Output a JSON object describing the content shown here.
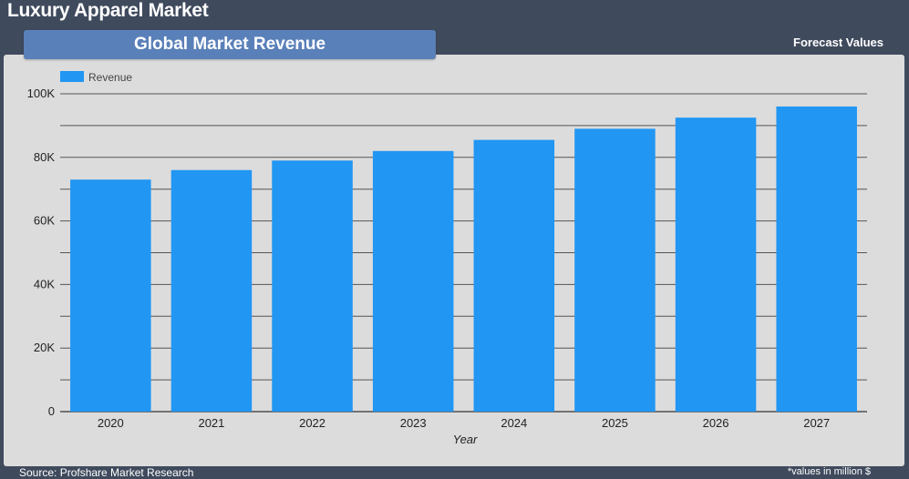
{
  "header": {
    "title": "Luxury Apparel Market",
    "subtitle": "Global Market Revenue",
    "forecast_label": "Forecast Values"
  },
  "footer": {
    "source": "Source: Profshare Market Research",
    "units_note": "*values in million $"
  },
  "colors": {
    "background": "#3f4a5d",
    "panel": "#dcdcdc",
    "subtitle_box": "#5a80b9",
    "bar": "#2196f3",
    "gridline": "#555555"
  },
  "chart_data": {
    "type": "bar",
    "categories": [
      "2020",
      "2021",
      "2022",
      "2023",
      "2024",
      "2025",
      "2026",
      "2027"
    ],
    "series": [
      {
        "name": "Revenue",
        "values": [
          73000,
          76000,
          79000,
          82000,
          85500,
          89000,
          92500,
          96000
        ]
      }
    ],
    "xlabel": "Year",
    "ylabel": "",
    "ylim": [
      0,
      100000
    ],
    "yticks": [
      0,
      20000,
      40000,
      60000,
      80000,
      100000
    ],
    "ytick_labels": [
      "0",
      "20K",
      "40K",
      "60K",
      "80K",
      "100K"
    ],
    "grid": true,
    "legend_position": "top-left"
  }
}
